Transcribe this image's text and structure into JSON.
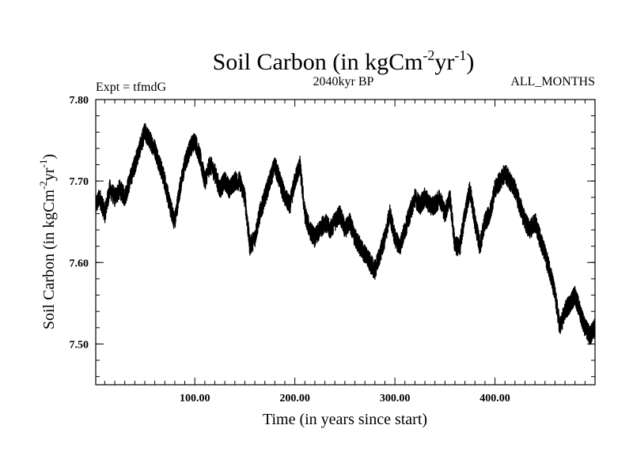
{
  "chart_data": {
    "type": "line",
    "title": "Soil Carbon (in kgCm",
    "title_units": {
      "sup1": "-2",
      "mid": "yr",
      "sup2": "-1",
      "close": ")"
    },
    "subtitle_left": "Expt = tfmdG",
    "subtitle_center": "2040kyr BP",
    "subtitle_right": "ALL_MONTHS",
    "xlabel": "Time (in years since start)",
    "ylabel": "Soil Carbon (in kgCm",
    "ylabel_units": {
      "sup1": "-2",
      "mid": "yr",
      "sup2": "-1",
      "close": ")"
    },
    "xlim": [
      1,
      500
    ],
    "ylim": [
      7.45,
      7.8
    ],
    "xticks": [
      100,
      200,
      300,
      400
    ],
    "xtick_labels": [
      "100.00",
      "200.00",
      "300.00",
      "400.00"
    ],
    "yticks": [
      7.5,
      7.6,
      7.7,
      7.8
    ],
    "ytick_labels": [
      "7.50",
      "7.60",
      "7.70",
      "7.80"
    ],
    "series": [
      {
        "name": "Soil Carbon",
        "color": "#000000",
        "anchors_x": [
          1,
          5,
          10,
          15,
          20,
          25,
          30,
          35,
          40,
          45,
          50,
          55,
          60,
          65,
          70,
          75,
          80,
          85,
          90,
          95,
          100,
          105,
          110,
          115,
          120,
          125,
          130,
          135,
          140,
          145,
          150,
          155,
          160,
          165,
          170,
          175,
          180,
          185,
          190,
          195,
          200,
          205,
          210,
          215,
          220,
          225,
          230,
          235,
          240,
          245,
          250,
          255,
          260,
          265,
          270,
          275,
          280,
          285,
          290,
          295,
          300,
          305,
          310,
          315,
          320,
          325,
          330,
          335,
          340,
          345,
          350,
          355,
          360,
          365,
          370,
          375,
          380,
          385,
          390,
          395,
          400,
          405,
          410,
          415,
          420,
          425,
          430,
          435,
          440,
          445,
          450,
          455,
          460,
          465,
          470,
          475,
          480,
          485,
          490,
          495,
          500
        ],
        "anchors_y": [
          7.67,
          7.68,
          7.66,
          7.69,
          7.68,
          7.69,
          7.68,
          7.7,
          7.72,
          7.74,
          7.76,
          7.75,
          7.74,
          7.72,
          7.7,
          7.67,
          7.65,
          7.69,
          7.72,
          7.74,
          7.75,
          7.73,
          7.7,
          7.72,
          7.71,
          7.69,
          7.7,
          7.69,
          7.7,
          7.7,
          7.68,
          7.62,
          7.63,
          7.66,
          7.68,
          7.7,
          7.72,
          7.7,
          7.68,
          7.67,
          7.7,
          7.72,
          7.66,
          7.64,
          7.63,
          7.64,
          7.65,
          7.64,
          7.65,
          7.66,
          7.64,
          7.65,
          7.63,
          7.62,
          7.61,
          7.6,
          7.59,
          7.61,
          7.63,
          7.66,
          7.63,
          7.62,
          7.64,
          7.66,
          7.68,
          7.67,
          7.68,
          7.67,
          7.67,
          7.68,
          7.66,
          7.68,
          7.62,
          7.62,
          7.66,
          7.69,
          7.65,
          7.62,
          7.65,
          7.66,
          7.69,
          7.7,
          7.71,
          7.7,
          7.69,
          7.67,
          7.65,
          7.64,
          7.65,
          7.63,
          7.61,
          7.59,
          7.56,
          7.52,
          7.54,
          7.55,
          7.56,
          7.54,
          7.52,
          7.51,
          7.52
        ]
      }
    ]
  }
}
